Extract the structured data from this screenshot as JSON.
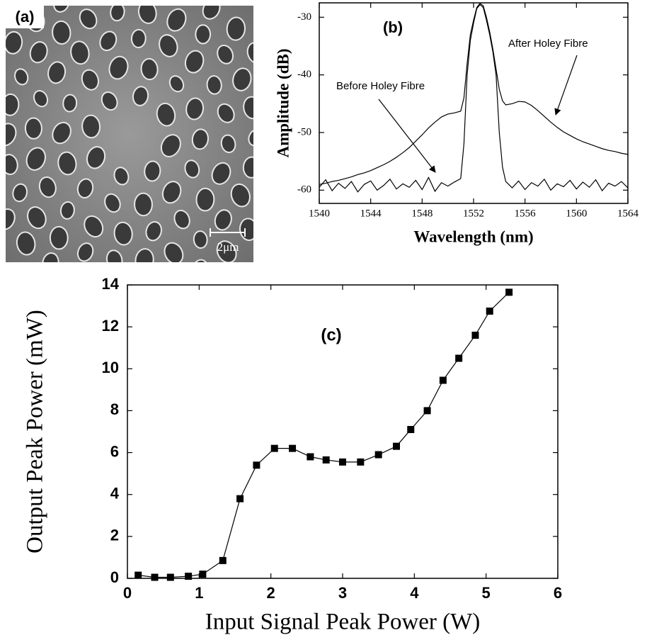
{
  "image_panel": {
    "label": "(a)",
    "scale_bar": "2μm"
  },
  "chart_data": [
    {
      "type": "line",
      "label": "(b)",
      "xlabel": "Wavelength (nm)",
      "ylabel": "Amplitude (dB)",
      "x": [
        1540,
        1540.5,
        1541,
        1541.5,
        1542,
        1542.5,
        1543,
        1543.5,
        1544,
        1544.5,
        1545,
        1545.5,
        1546,
        1546.5,
        1547,
        1547.5,
        1548,
        1548.5,
        1549,
        1549.5,
        1550,
        1550.5,
        1551,
        1551.25,
        1551.5,
        1551.75,
        1552,
        1552.25,
        1552.5,
        1552.75,
        1553,
        1553.25,
        1553.5,
        1553.75,
        1554,
        1554.25,
        1554.5,
        1555,
        1555.5,
        1556,
        1556.5,
        1557,
        1557.5,
        1558,
        1558.5,
        1559,
        1559.5,
        1560,
        1560.5,
        1561,
        1561.5,
        1562,
        1562.5,
        1563,
        1563.5,
        1564
      ],
      "series": [
        {
          "name": "Before Holey Fibre",
          "color": "#000000",
          "values": [
            -59.5,
            -58.2,
            -60.1,
            -58.8,
            -59.7,
            -58.5,
            -60.3,
            -59.0,
            -58.4,
            -60.0,
            -59.2,
            -58.1,
            -59.8,
            -58.9,
            -59.5,
            -58.3,
            -59.9,
            -57.8,
            -60.2,
            -58.7,
            -59.3,
            -58.6,
            -58.0,
            -52,
            -40,
            -34,
            -31,
            -28.5,
            -27.8,
            -28.3,
            -30.5,
            -33,
            -36,
            -40,
            -50,
            -56,
            -58.5,
            -59.6,
            -58.4,
            -59.9,
            -58.7,
            -59.3,
            -58.1,
            -60.0,
            -58.9,
            -59.4,
            -58.3,
            -59.8,
            -58.6,
            -59.5,
            -58.2,
            -60.1,
            -58.8,
            -59.3,
            -58.5,
            -59.6
          ]
        },
        {
          "name": "After Holey Fibre",
          "color": "#000000",
          "values": [
            -59,
            -58.8,
            -58.5,
            -58.3,
            -58,
            -57.7,
            -57.3,
            -57,
            -56.6,
            -56.1,
            -55.6,
            -55,
            -54.3,
            -53.5,
            -52.6,
            -51.5,
            -50.4,
            -49.2,
            -48.2,
            -47.3,
            -46.8,
            -46.6,
            -46.3,
            -44,
            -38,
            -33,
            -30.5,
            -28.3,
            -27.6,
            -28,
            -30,
            -32.5,
            -35.5,
            -39,
            -42.5,
            -44.5,
            -45.2,
            -45,
            -44.6,
            -44.7,
            -45.3,
            -46.2,
            -47.2,
            -48.2,
            -49.1,
            -49.9,
            -50.5,
            -51.1,
            -51.6,
            -52.0,
            -52.4,
            -52.8,
            -53.1,
            -53.3,
            -53.6,
            -53.8
          ]
        }
      ],
      "xlim": [
        1540,
        1564
      ],
      "xticks": [
        1540,
        1544,
        1548,
        1552,
        1556,
        1560,
        1564
      ],
      "ylim": [
        -62.3,
        -27.5
      ],
      "yticks": [
        -30,
        -40,
        -50,
        -60
      ]
    },
    {
      "type": "line",
      "markers": "square",
      "label": "(c)",
      "xlabel": "Input Signal Peak Power (W)",
      "ylabel": "Output Peak Power (mW)",
      "color": "#000000",
      "x": [
        0.15,
        0.38,
        0.6,
        0.85,
        1.05,
        1.33,
        1.57,
        1.8,
        2.05,
        2.3,
        2.55,
        2.77,
        3.0,
        3.25,
        3.5,
        3.75,
        3.95,
        4.18,
        4.4,
        4.62,
        4.85,
        5.05,
        5.32
      ],
      "values": [
        0.15,
        0.05,
        0.05,
        0.1,
        0.2,
        0.85,
        3.8,
        5.4,
        6.2,
        6.2,
        5.8,
        5.65,
        5.55,
        5.55,
        5.9,
        6.3,
        7.1,
        8.0,
        9.45,
        10.5,
        11.6,
        12.75,
        13.65
      ],
      "xlim": [
        0,
        6
      ],
      "xticks": [
        0,
        1,
        2,
        3,
        4,
        5,
        6
      ],
      "ylim": [
        0,
        14
      ],
      "yticks": [
        0,
        2,
        4,
        6,
        8,
        10,
        12,
        14
      ]
    }
  ]
}
